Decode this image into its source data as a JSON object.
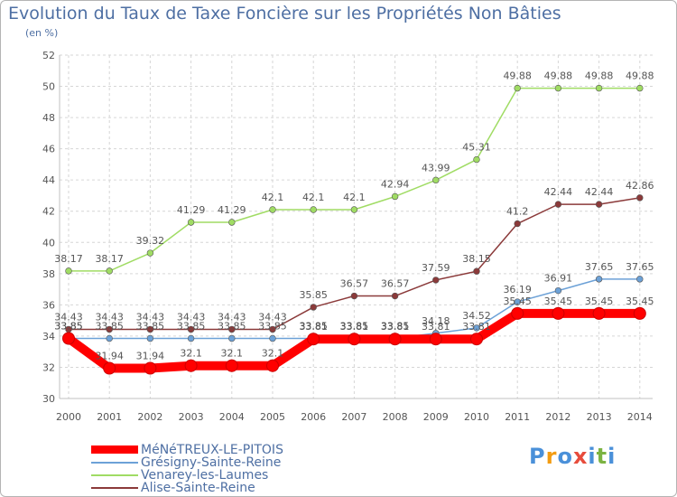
{
  "chart_data": {
    "type": "line",
    "title": "Evolution du Taux de Taxe Foncière sur les Propriétés Non Bâties",
    "ylabel": "(en %)",
    "x": [
      "2000",
      "2001",
      "2002",
      "2003",
      "2004",
      "2005",
      "2006",
      "2007",
      "2008",
      "2009",
      "2010",
      "2011",
      "2012",
      "2013",
      "2014"
    ],
    "ylim": [
      30,
      52
    ],
    "yticks": [
      "30",
      "32",
      "34",
      "36",
      "38",
      "40",
      "42",
      "44",
      "46",
      "48",
      "50",
      "52"
    ],
    "series": [
      {
        "name": "MéNéTREUX-LE-PITOIS",
        "color": "#ff0000",
        "values": [
          33.85,
          31.94,
          31.94,
          32.1,
          32.1,
          32.1,
          33.81,
          33.81,
          33.81,
          33.81,
          33.81,
          35.45,
          35.45,
          35.45,
          35.45
        ],
        "labels": [
          "33.85",
          "31.94",
          "31.94",
          "32.1",
          "32.1",
          "32.1",
          "33.81",
          "33.81",
          "33.81",
          "33.81",
          "33.81",
          "35.45",
          "35.45",
          "35.45",
          "35.45"
        ]
      },
      {
        "name": "Grésigny-Sainte-Reine",
        "color": "#6ca1d7",
        "values": [
          33.85,
          33.85,
          33.85,
          33.85,
          33.85,
          33.85,
          33.85,
          33.85,
          33.85,
          34.18,
          34.52,
          36.19,
          36.91,
          37.65,
          37.65
        ],
        "labels": [
          "33.85",
          "33.85",
          "33.85",
          "33.85",
          "33.85",
          "33.85",
          "33.85",
          "33.85",
          "33.85",
          "34.18",
          "34.52",
          "36.19",
          "36.91",
          "37.65",
          "37.65"
        ]
      },
      {
        "name": "Venarey-les-Laumes",
        "color": "#a0dc64",
        "values": [
          38.17,
          38.17,
          39.32,
          41.29,
          41.29,
          42.1,
          42.1,
          42.1,
          42.94,
          43.99,
          45.31,
          49.88,
          49.88,
          49.88,
          49.88
        ],
        "labels": [
          "38.17",
          "38.17",
          "39.32",
          "41.29",
          "41.29",
          "42.1",
          "42.1",
          "42.1",
          "42.94",
          "43.99",
          "45.31",
          "49.88",
          "49.88",
          "49.88",
          "49.88"
        ]
      },
      {
        "name": "Alise-Sainte-Reine",
        "color": "#8b3a3a",
        "values": [
          34.43,
          34.43,
          34.43,
          34.43,
          34.43,
          34.43,
          35.85,
          36.57,
          36.57,
          37.59,
          38.15,
          41.2,
          42.44,
          42.44,
          42.86
        ],
        "labels": [
          "34.43",
          "34.43",
          "34.43",
          "34.43",
          "34.43",
          "34.43",
          "35.85",
          "36.57",
          "36.57",
          "37.59",
          "38.15",
          "41.2",
          "42.44",
          "42.44",
          "42.86"
        ]
      }
    ]
  },
  "logo": {
    "text": "Proxiti",
    "letter_colors": [
      "#4a90d9",
      "#f39c12",
      "#4a90d9",
      "#e74c3c",
      "#4a90d9",
      "#7cb342",
      "#4a90d9"
    ]
  }
}
